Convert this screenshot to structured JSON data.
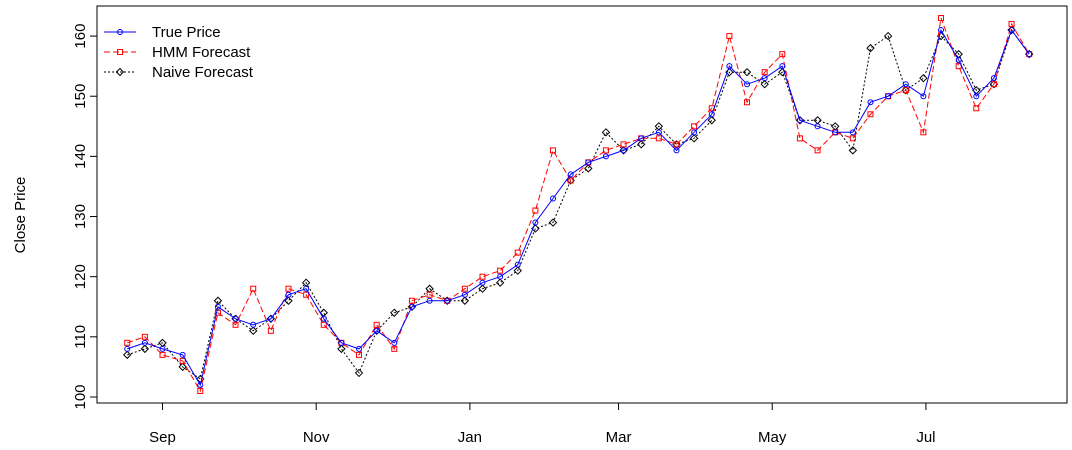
{
  "chart_data": {
    "type": "line",
    "title": "",
    "xlabel": "",
    "ylabel": "Close Price",
    "x_ticks": [
      "Sep",
      "Nov",
      "Jan",
      "Mar",
      "May",
      "Jul"
    ],
    "x_tick_dates": [
      "2022-09-01",
      "2022-11-01",
      "2023-01-01",
      "2023-03-01",
      "2023-05-01",
      "2023-07-01"
    ],
    "xlim": [
      "2022-08-06",
      "2023-08-26"
    ],
    "ylim": [
      99,
      165
    ],
    "y_ticks": [
      100,
      110,
      120,
      130,
      140,
      150,
      160
    ],
    "grid": false,
    "legend_position": "top-left",
    "x": [
      "2022-08-18",
      "2022-08-25",
      "2022-09-01",
      "2022-09-09",
      "2022-09-16",
      "2022-09-23",
      "2022-09-30",
      "2022-10-07",
      "2022-10-14",
      "2022-10-21",
      "2022-10-28",
      "2022-11-04",
      "2022-11-11",
      "2022-11-18",
      "2022-11-25",
      "2022-12-02",
      "2022-12-09",
      "2022-12-16",
      "2022-12-23",
      "2022-12-30",
      "2023-01-06",
      "2023-01-13",
      "2023-01-20",
      "2023-01-27",
      "2023-02-03",
      "2023-02-10",
      "2023-02-17",
      "2023-02-24",
      "2023-03-03",
      "2023-03-10",
      "2023-03-17",
      "2023-03-24",
      "2023-03-31",
      "2023-04-07",
      "2023-04-14",
      "2023-04-21",
      "2023-04-28",
      "2023-05-05",
      "2023-05-12",
      "2023-05-19",
      "2023-05-26",
      "2023-06-02",
      "2023-06-09",
      "2023-06-16",
      "2023-06-23",
      "2023-06-30",
      "2023-07-07",
      "2023-07-14",
      "2023-07-21",
      "2023-07-28",
      "2023-08-04",
      "2023-08-11"
    ],
    "series": [
      {
        "name": "True Price",
        "color": "#0000ff",
        "dash": "solid",
        "marker": "circle",
        "values": [
          108,
          109,
          108,
          107,
          102,
          115,
          113,
          112,
          113,
          117,
          118,
          113,
          109,
          108,
          111,
          109,
          115,
          116,
          116,
          117,
          119,
          120,
          122,
          129,
          133,
          137,
          139,
          140,
          141,
          143,
          144,
          141,
          144,
          147,
          155,
          152,
          153,
          155,
          146,
          145,
          144,
          144,
          149,
          150,
          152,
          150,
          161,
          156,
          150,
          153,
          161,
          157
        ]
      },
      {
        "name": "HMM Forecast",
        "color": "#ff0000",
        "dash": "dashed",
        "marker": "square",
        "values": [
          109,
          110,
          107,
          106,
          101,
          114,
          112,
          118,
          111,
          118,
          117,
          112,
          109,
          107,
          112,
          108,
          116,
          117,
          116,
          118,
          120,
          121,
          124,
          131,
          141,
          136,
          139,
          141,
          142,
          143,
          143,
          142,
          145,
          148,
          160,
          149,
          154,
          157,
          143,
          141,
          144,
          143,
          147,
          150,
          151,
          144,
          163,
          155,
          148,
          152,
          162,
          157
        ]
      },
      {
        "name": "Naive Forecast",
        "color": "#000000",
        "dash": "dotted",
        "marker": "diamond",
        "values": [
          107,
          108,
          109,
          105,
          103,
          116,
          113,
          111,
          113,
          116,
          119,
          114,
          108,
          104,
          111,
          114,
          115,
          118,
          116,
          116,
          118,
          119,
          121,
          128,
          129,
          136,
          138,
          144,
          141,
          142,
          145,
          142,
          143,
          146,
          154,
          154,
          152,
          154,
          146,
          146,
          145,
          141,
          158,
          160,
          151,
          153,
          160,
          157,
          151,
          152,
          161,
          157
        ]
      }
    ]
  }
}
